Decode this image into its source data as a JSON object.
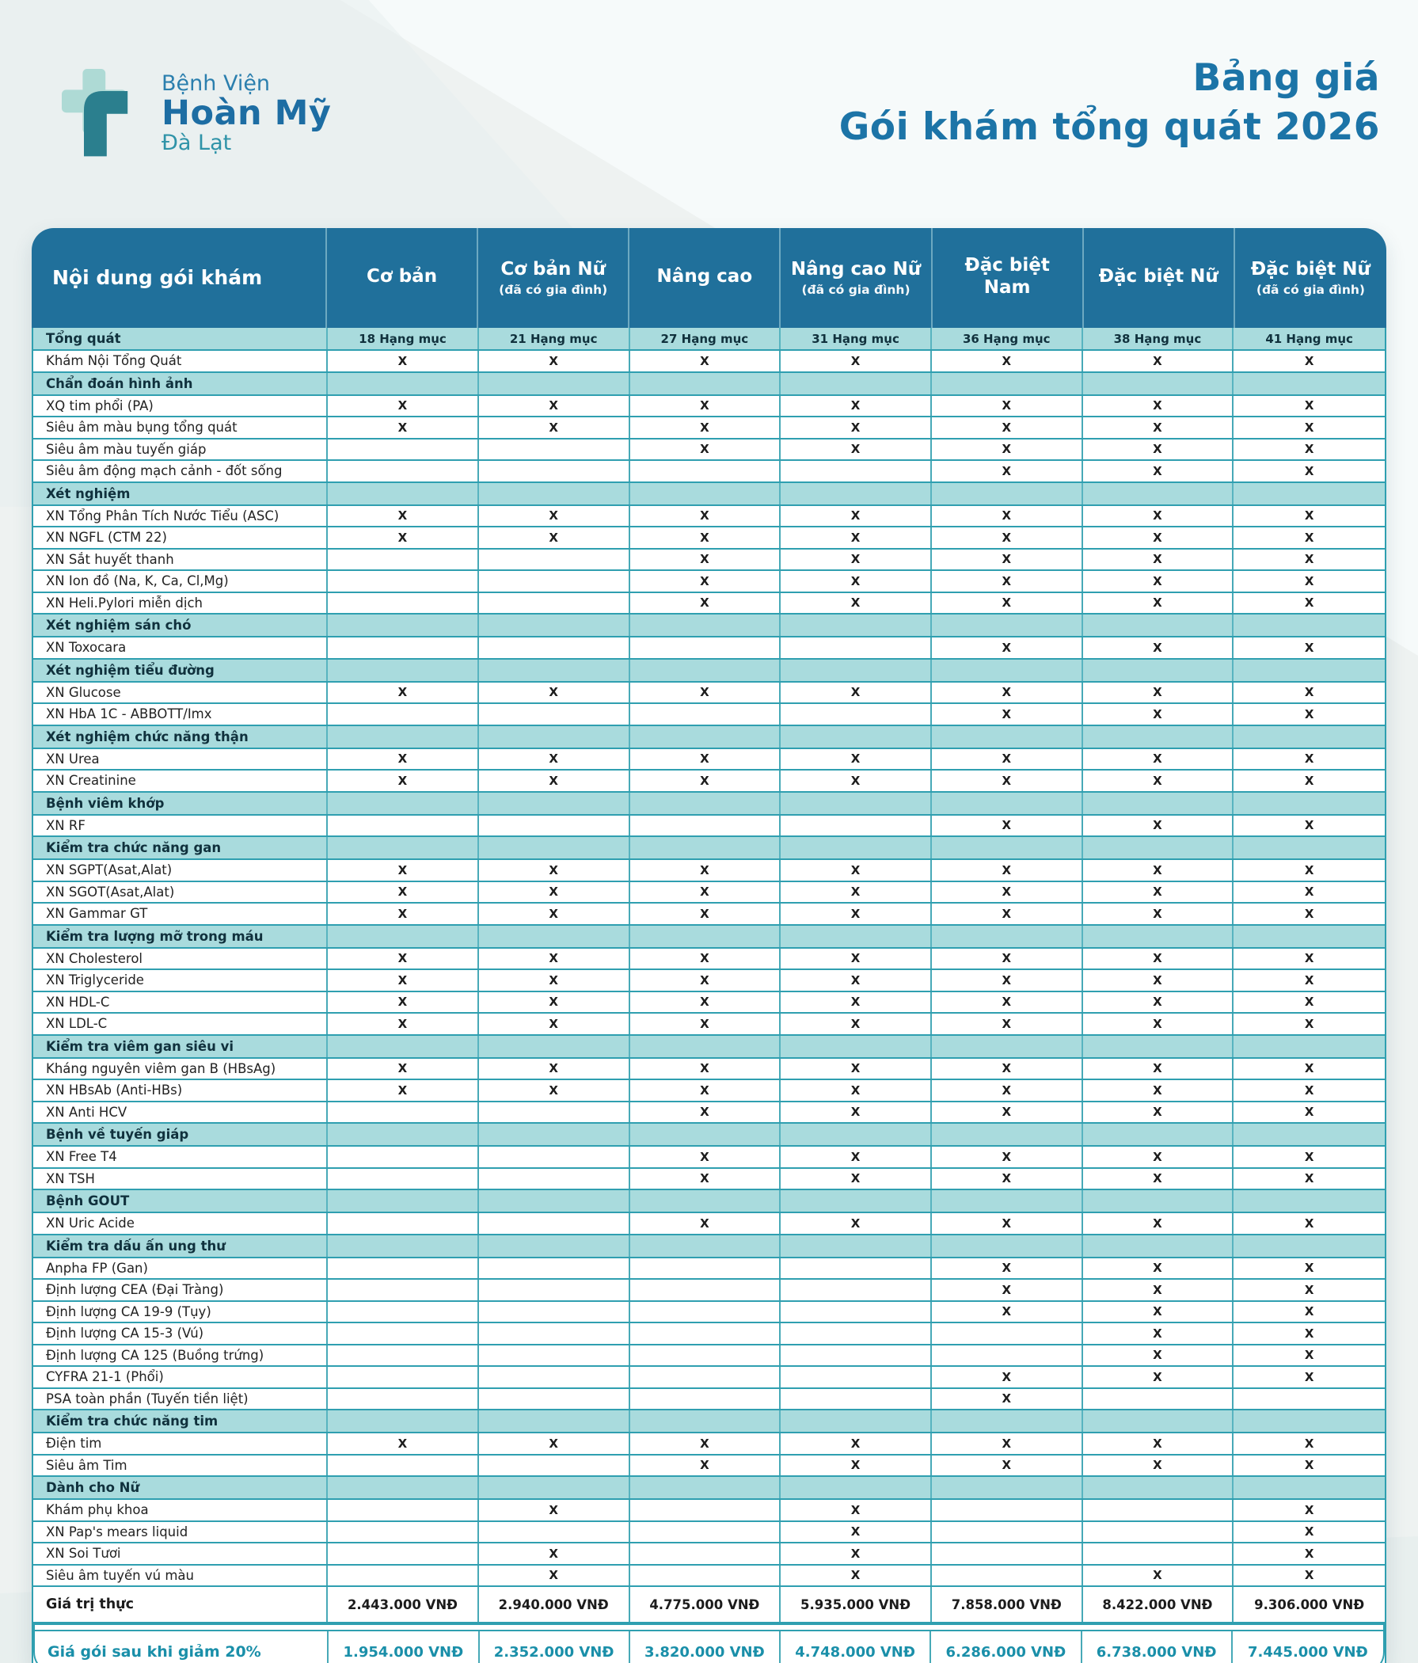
{
  "logo": {
    "line1": "Bệnh Viện",
    "line2": "Hoàn Mỹ",
    "line3": "Đà Lạt"
  },
  "title": {
    "line1": "Bảng giá",
    "line2": "Gói khám tổng quát 2026"
  },
  "colors": {
    "header_bg": "#20709b",
    "section_bg": "#a9dbdd",
    "border": "#2f9fb0",
    "title_blue": "#1c74a7",
    "discount_teal": "#1a8fa9",
    "logo_light": "#aedad5",
    "logo_dark": "#2b7f8e"
  },
  "table": {
    "label_header": "Nội dung gói khám",
    "columns": [
      {
        "name": "Cơ bản",
        "sub": ""
      },
      {
        "name": "Cơ bản Nữ",
        "sub": "(đã có gia đình)"
      },
      {
        "name": "Nâng cao",
        "sub": ""
      },
      {
        "name": "Nâng cao Nữ",
        "sub": "(đã có gia đình)"
      },
      {
        "name": "Đặc biệt Nam",
        "sub": ""
      },
      {
        "name": "Đặc biệt Nữ",
        "sub": ""
      },
      {
        "name": "Đặc biệt Nữ",
        "sub": "(đã có gia đình)"
      }
    ],
    "rows": [
      {
        "type": "section",
        "label": "Tổng quát",
        "cells": [
          "18 Hạng mục",
          "21 Hạng mục",
          "27 Hạng mục",
          "31 Hạng mục",
          "36 Hạng mục",
          "38 Hạng mục",
          "41 Hạng mục"
        ]
      },
      {
        "type": "item",
        "label": "Khám Nội Tổng Quát",
        "cells": [
          "X",
          "X",
          "X",
          "X",
          "X",
          "X",
          "X"
        ]
      },
      {
        "type": "section",
        "label": "Chẩn đoán hình ảnh",
        "cells": [
          "",
          "",
          "",
          "",
          "",
          "",
          ""
        ]
      },
      {
        "type": "item",
        "label": "XQ tim phổi (PA)",
        "cells": [
          "X",
          "X",
          "X",
          "X",
          "X",
          "X",
          "X"
        ]
      },
      {
        "type": "item",
        "label": "Siêu âm màu bụng tổng quát",
        "cells": [
          "X",
          "X",
          "X",
          "X",
          "X",
          "X",
          "X"
        ]
      },
      {
        "type": "item",
        "label": "Siêu âm màu tuyến giáp",
        "cells": [
          "",
          "",
          "X",
          "X",
          "X",
          "X",
          "X"
        ]
      },
      {
        "type": "item",
        "label": "Siêu âm động mạch cảnh - đốt sống",
        "cells": [
          "",
          "",
          "",
          "",
          "X",
          "X",
          "X"
        ]
      },
      {
        "type": "section",
        "label": "Xét nghiệm",
        "cells": [
          "",
          "",
          "",
          "",
          "",
          "",
          ""
        ]
      },
      {
        "type": "item",
        "label": "XN Tổng Phân Tích Nước Tiểu (ASC)",
        "cells": [
          "X",
          "X",
          "X",
          "X",
          "X",
          "X",
          "X"
        ]
      },
      {
        "type": "item",
        "label": "XN NGFL (CTM 22)",
        "cells": [
          "X",
          "X",
          "X",
          "X",
          "X",
          "X",
          "X"
        ]
      },
      {
        "type": "item",
        "label": "XN Sắt huyết thanh",
        "cells": [
          "",
          "",
          "X",
          "X",
          "X",
          "X",
          "X"
        ]
      },
      {
        "type": "item",
        "label": "XN Ion đồ (Na, K, Ca, Cl,Mg)",
        "cells": [
          "",
          "",
          "X",
          "X",
          "X",
          "X",
          "X"
        ]
      },
      {
        "type": "item",
        "label": "XN Heli.Pylori miễn dịch",
        "cells": [
          "",
          "",
          "X",
          "X",
          "X",
          "X",
          "X"
        ]
      },
      {
        "type": "section",
        "label": "Xét nghiệm sán chó",
        "cells": [
          "",
          "",
          "",
          "",
          "",
          "",
          ""
        ]
      },
      {
        "type": "item",
        "label": "XN Toxocara",
        "cells": [
          "",
          "",
          "",
          "",
          "X",
          "X",
          "X"
        ]
      },
      {
        "type": "section",
        "label": "Xét nghiệm tiểu đường",
        "cells": [
          "",
          "",
          "",
          "",
          "",
          "",
          ""
        ]
      },
      {
        "type": "item",
        "label": "XN Glucose",
        "cells": [
          "X",
          "X",
          "X",
          "X",
          "X",
          "X",
          "X"
        ]
      },
      {
        "type": "item",
        "label": "XN HbA 1C - ABBOTT/Imx",
        "cells": [
          "",
          "",
          "",
          "",
          "X",
          "X",
          "X"
        ]
      },
      {
        "type": "section",
        "label": "Xét nghiệm chức năng thận",
        "cells": [
          "",
          "",
          "",
          "",
          "",
          "",
          ""
        ]
      },
      {
        "type": "item",
        "label": "XN Urea",
        "cells": [
          "X",
          "X",
          "X",
          "X",
          "X",
          "X",
          "X"
        ]
      },
      {
        "type": "item",
        "label": "XN Creatinine",
        "cells": [
          "X",
          "X",
          "X",
          "X",
          "X",
          "X",
          "X"
        ]
      },
      {
        "type": "section",
        "label": "Bệnh viêm khớp",
        "cells": [
          "",
          "",
          "",
          "",
          "",
          "",
          ""
        ]
      },
      {
        "type": "item",
        "label": "XN RF",
        "cells": [
          "",
          "",
          "",
          "",
          "X",
          "X",
          "X"
        ]
      },
      {
        "type": "section",
        "label": "Kiểm tra chức năng gan",
        "cells": [
          "",
          "",
          "",
          "",
          "",
          "",
          ""
        ]
      },
      {
        "type": "item",
        "label": "XN SGPT(Asat,Alat)",
        "cells": [
          "X",
          "X",
          "X",
          "X",
          "X",
          "X",
          "X"
        ]
      },
      {
        "type": "item",
        "label": "XN SGOT(Asat,Alat)",
        "cells": [
          "X",
          "X",
          "X",
          "X",
          "X",
          "X",
          "X"
        ]
      },
      {
        "type": "item",
        "label": "XN Gammar GT",
        "cells": [
          "X",
          "X",
          "X",
          "X",
          "X",
          "X",
          "X"
        ]
      },
      {
        "type": "section",
        "label": "Kiểm tra lượng mỡ trong máu",
        "cells": [
          "",
          "",
          "",
          "",
          "",
          "",
          ""
        ]
      },
      {
        "type": "item",
        "label": "XN Cholesterol",
        "cells": [
          "X",
          "X",
          "X",
          "X",
          "X",
          "X",
          "X"
        ]
      },
      {
        "type": "item",
        "label": "XN Triglyceride",
        "cells": [
          "X",
          "X",
          "X",
          "X",
          "X",
          "X",
          "X"
        ]
      },
      {
        "type": "item",
        "label": "XN HDL-C",
        "cells": [
          "X",
          "X",
          "X",
          "X",
          "X",
          "X",
          "X"
        ]
      },
      {
        "type": "item",
        "label": "XN LDL-C",
        "cells": [
          "X",
          "X",
          "X",
          "X",
          "X",
          "X",
          "X"
        ]
      },
      {
        "type": "section",
        "label": "Kiểm tra viêm gan siêu vi",
        "cells": [
          "",
          "",
          "",
          "",
          "",
          "",
          ""
        ]
      },
      {
        "type": "item",
        "label": "Kháng nguyên viêm gan B (HBsAg)",
        "cells": [
          "X",
          "X",
          "X",
          "X",
          "X",
          "X",
          "X"
        ]
      },
      {
        "type": "item",
        "label": "XN HBsAb (Anti-HBs)",
        "cells": [
          "X",
          "X",
          "X",
          "X",
          "X",
          "X",
          "X"
        ]
      },
      {
        "type": "item",
        "label": "XN Anti HCV",
        "cells": [
          "",
          "",
          "X",
          "X",
          "X",
          "X",
          "X"
        ]
      },
      {
        "type": "section",
        "label": "Bệnh về tuyến giáp",
        "cells": [
          "",
          "",
          "",
          "",
          "",
          "",
          ""
        ]
      },
      {
        "type": "item",
        "label": "XN Free T4",
        "cells": [
          "",
          "",
          "X",
          "X",
          "X",
          "X",
          "X"
        ]
      },
      {
        "type": "item",
        "label": "XN TSH",
        "cells": [
          "",
          "",
          "X",
          "X",
          "X",
          "X",
          "X"
        ]
      },
      {
        "type": "section",
        "label": "Bệnh GOUT",
        "cells": [
          "",
          "",
          "",
          "",
          "",
          "",
          ""
        ]
      },
      {
        "type": "item",
        "label": "XN Uric Acide",
        "cells": [
          "",
          "",
          "X",
          "X",
          "X",
          "X",
          "X"
        ]
      },
      {
        "type": "section",
        "label": "Kiểm tra dấu ấn ung thư",
        "cells": [
          "",
          "",
          "",
          "",
          "",
          "",
          ""
        ]
      },
      {
        "type": "item",
        "label": "Anpha FP (Gan)",
        "cells": [
          "",
          "",
          "",
          "",
          "X",
          "X",
          "X"
        ]
      },
      {
        "type": "item",
        "label": "Định lượng CEA (Đại Tràng)",
        "cells": [
          "",
          "",
          "",
          "",
          "X",
          "X",
          "X"
        ]
      },
      {
        "type": "item",
        "label": "Định lượng CA 19-9 (Tụy)",
        "cells": [
          "",
          "",
          "",
          "",
          "X",
          "X",
          "X"
        ]
      },
      {
        "type": "item",
        "label": "Định lượng CA 15-3 (Vú)",
        "cells": [
          "",
          "",
          "",
          "",
          "",
          "X",
          "X"
        ]
      },
      {
        "type": "item",
        "label": "Định lượng CA 125 (Buồng trứng)",
        "cells": [
          "",
          "",
          "",
          "",
          "",
          "X",
          "X"
        ]
      },
      {
        "type": "item",
        "label": "CYFRA 21-1 (Phổi)",
        "cells": [
          "",
          "",
          "",
          "",
          "X",
          "X",
          "X"
        ]
      },
      {
        "type": "item",
        "label": "PSA toàn phần (Tuyến tiền liệt)",
        "cells": [
          "",
          "",
          "",
          "",
          "X",
          "",
          ""
        ]
      },
      {
        "type": "section",
        "label": "Kiểm tra chức năng tim",
        "cells": [
          "",
          "",
          "",
          "",
          "",
          "",
          ""
        ]
      },
      {
        "type": "item",
        "label": "Điện tim",
        "cells": [
          "X",
          "X",
          "X",
          "X",
          "X",
          "X",
          "X"
        ]
      },
      {
        "type": "item",
        "label": "Siêu âm Tim",
        "cells": [
          "",
          "",
          "X",
          "X",
          "X",
          "X",
          "X"
        ]
      },
      {
        "type": "section",
        "label": "Dành cho Nữ",
        "cells": [
          "",
          "",
          "",
          "",
          "",
          "",
          ""
        ]
      },
      {
        "type": "item",
        "label": "Khám phụ khoa",
        "cells": [
          "",
          "X",
          "",
          "X",
          "",
          "",
          "X"
        ]
      },
      {
        "type": "item",
        "label": "XN Pap's mears liquid",
        "cells": [
          "",
          "",
          "",
          "X",
          "",
          "",
          "X"
        ]
      },
      {
        "type": "item",
        "label": "XN Soi Tươi",
        "cells": [
          "",
          "X",
          "",
          "X",
          "",
          "",
          "X"
        ]
      },
      {
        "type": "item",
        "label": "Siêu âm tuyến vú màu",
        "cells": [
          "",
          "X",
          "",
          "X",
          "",
          "X",
          "X"
        ]
      },
      {
        "type": "price",
        "label": "Giá trị thực",
        "cells": [
          "2.443.000 VNĐ",
          "2.940.000 VNĐ",
          "4.775.000 VNĐ",
          "5.935.000 VNĐ",
          "7.858.000 VNĐ",
          "8.422.000 VNĐ",
          "9.306.000 VNĐ"
        ]
      },
      {
        "type": "discount",
        "label": "Giá gói sau khi giảm 20%",
        "cells": [
          "1.954.000 VNĐ",
          "2.352.000 VNĐ",
          "3.820.000 VNĐ",
          "4.748.000 VNĐ",
          "6.286.000 VNĐ",
          "6.738.000 VNĐ",
          "7.445.000 VNĐ"
        ]
      }
    ]
  }
}
